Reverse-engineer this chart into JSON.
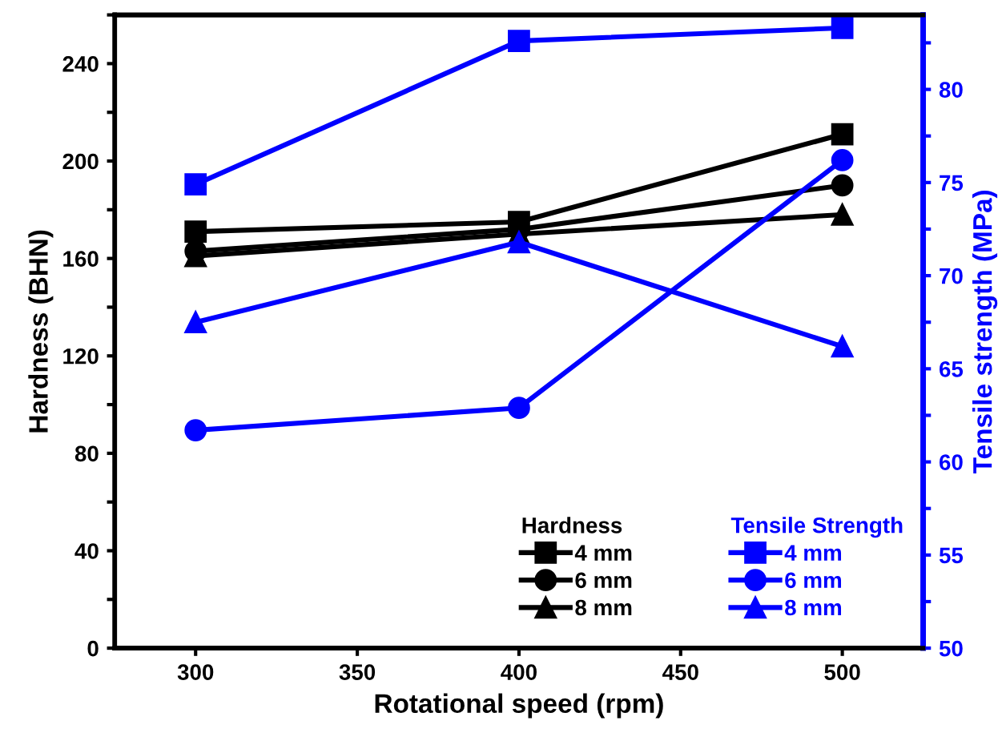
{
  "chart_data": {
    "type": "line",
    "xlabel": "Rotational speed (rpm)",
    "ylabel": "Hardness (BHN)",
    "y2label": "Tensile strength (MPa)",
    "legend_title": [
      "Hardness",
      "Tensile Strength"
    ],
    "x": [
      300,
      400,
      500
    ],
    "xlim": [
      275,
      525
    ],
    "xticks": [
      300,
      350,
      400,
      450,
      500
    ],
    "ylim": [
      0,
      260
    ],
    "yticks": [
      0,
      {
        "value": 20,
        "label": null
      },
      40,
      {
        "value": 60,
        "label": null
      },
      80,
      {
        "value": 100,
        "label": null
      },
      120,
      {
        "value": 140,
        "label": null
      },
      160,
      {
        "value": 180,
        "label": null
      },
      200,
      {
        "value": 220,
        "label": null
      },
      240,
      {
        "value": 260,
        "label": null
      }
    ],
    "y2lim": [
      50,
      84
    ],
    "y2ticks": [
      50,
      {
        "value": 52.5,
        "label": null
      },
      55,
      {
        "value": 57.5,
        "label": null
      },
      60,
      {
        "value": 62.5,
        "label": null
      },
      65,
      {
        "value": 67.5,
        "label": null
      },
      70,
      {
        "value": 72.5,
        "label": null
      },
      75,
      {
        "value": 77.5,
        "label": null
      },
      80,
      {
        "value": 82.5,
        "label": null
      }
    ],
    "legend": "bottom right",
    "grid": false,
    "line_style": "solid",
    "series": [
      {
        "name": "4 mm",
        "color": "#000000",
        "marker": "square",
        "values": [
          171,
          175,
          211
        ]
      },
      {
        "name": "6 mm",
        "color": "#000000",
        "marker": "circle",
        "values": [
          163,
          172,
          190
        ]
      },
      {
        "name": "8 mm",
        "color": "#000000",
        "marker": "triangle",
        "values": [
          161,
          170,
          178
        ]
      },
      {
        "name": "4 mm",
        "color": "#0000ff",
        "marker": "square",
        "axis": "y2",
        "values": [
          74.9,
          82.6,
          83.3
        ]
      },
      {
        "name": "6 mm",
        "color": "#0000ff",
        "marker": "circle",
        "axis": "y2",
        "values": [
          61.7,
          62.9,
          76.2
        ]
      },
      {
        "name": "8 mm",
        "color": "#0000ff",
        "marker": "triangle",
        "axis": "y2",
        "values": [
          67.5,
          71.8,
          66.2
        ]
      }
    ]
  }
}
